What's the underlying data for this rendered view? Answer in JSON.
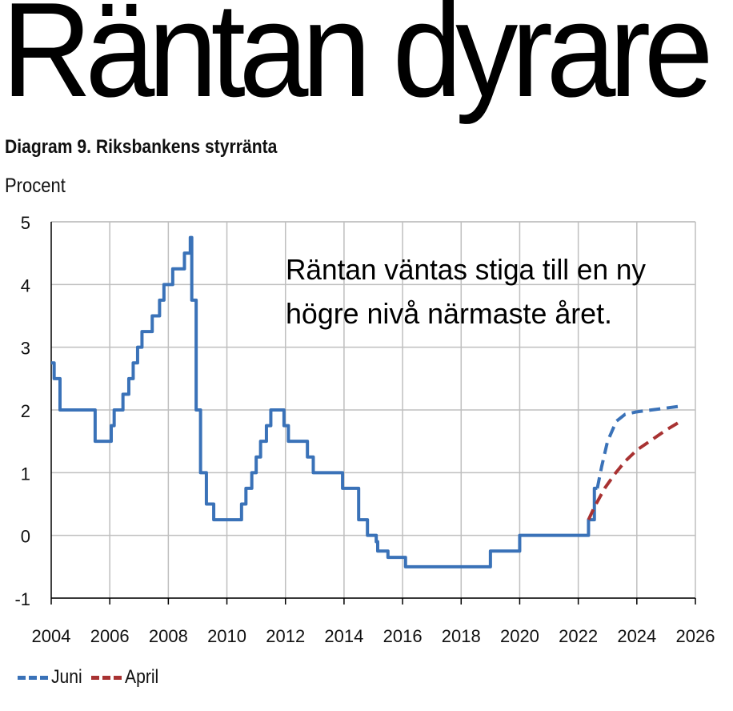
{
  "headline": "Räntan dyrare",
  "diagram_title": "Diagram 9. Riksbankens styrränta",
  "unit_label": "Procent",
  "colors": {
    "juni": "#3a72b8",
    "april": "#a83232",
    "grid": "#bfbfbf",
    "axis": "#000000"
  },
  "chart_data": {
    "type": "line",
    "title": "Diagram 9. Riksbankens styrränta",
    "ylabel": "Procent",
    "xlim": [
      2004,
      2026
    ],
    "ylim": [
      -1,
      5
    ],
    "x_ticks": [
      "2004",
      "2006",
      "2008",
      "2010",
      "2012",
      "2014",
      "2016",
      "2018",
      "2020",
      "2022",
      "2024",
      "2026"
    ],
    "y_ticks": [
      "5",
      "4",
      "3",
      "2",
      "1",
      "0",
      "-1"
    ],
    "grid": true,
    "annotation": [
      "Räntan väntas stiga till en ny",
      "högre nivå närmaste året."
    ],
    "legend_position": "bottom-left",
    "series": [
      {
        "name": "Juni",
        "style": "solid",
        "points": [
          [
            2004.0,
            2.75
          ],
          [
            2004.1,
            2.75
          ],
          [
            2004.1,
            2.5
          ],
          [
            2004.3,
            2.5
          ],
          [
            2004.3,
            2.0
          ],
          [
            2005.5,
            2.0
          ],
          [
            2005.5,
            1.5
          ],
          [
            2006.05,
            1.5
          ],
          [
            2006.05,
            1.75
          ],
          [
            2006.15,
            1.75
          ],
          [
            2006.15,
            2.0
          ],
          [
            2006.45,
            2.0
          ],
          [
            2006.45,
            2.25
          ],
          [
            2006.65,
            2.25
          ],
          [
            2006.65,
            2.5
          ],
          [
            2006.8,
            2.5
          ],
          [
            2006.8,
            2.75
          ],
          [
            2006.95,
            2.75
          ],
          [
            2006.95,
            3.0
          ],
          [
            2007.1,
            3.0
          ],
          [
            2007.1,
            3.25
          ],
          [
            2007.45,
            3.25
          ],
          [
            2007.45,
            3.5
          ],
          [
            2007.7,
            3.5
          ],
          [
            2007.7,
            3.75
          ],
          [
            2007.85,
            3.75
          ],
          [
            2007.85,
            4.0
          ],
          [
            2008.15,
            4.0
          ],
          [
            2008.15,
            4.25
          ],
          [
            2008.55,
            4.25
          ],
          [
            2008.55,
            4.5
          ],
          [
            2008.75,
            4.5
          ],
          [
            2008.75,
            4.75
          ],
          [
            2008.8,
            4.75
          ],
          [
            2008.8,
            3.75
          ],
          [
            2008.95,
            3.75
          ],
          [
            2008.95,
            2.0
          ],
          [
            2009.1,
            2.0
          ],
          [
            2009.1,
            1.0
          ],
          [
            2009.3,
            1.0
          ],
          [
            2009.3,
            0.5
          ],
          [
            2009.55,
            0.5
          ],
          [
            2009.55,
            0.25
          ],
          [
            2010.5,
            0.25
          ],
          [
            2010.5,
            0.5
          ],
          [
            2010.65,
            0.5
          ],
          [
            2010.65,
            0.75
          ],
          [
            2010.85,
            0.75
          ],
          [
            2010.85,
            1.0
          ],
          [
            2011.0,
            1.0
          ],
          [
            2011.0,
            1.25
          ],
          [
            2011.15,
            1.25
          ],
          [
            2011.15,
            1.5
          ],
          [
            2011.35,
            1.5
          ],
          [
            2011.35,
            1.75
          ],
          [
            2011.5,
            1.75
          ],
          [
            2011.5,
            2.0
          ],
          [
            2011.95,
            2.0
          ],
          [
            2011.95,
            1.75
          ],
          [
            2012.1,
            1.75
          ],
          [
            2012.1,
            1.5
          ],
          [
            2012.75,
            1.5
          ],
          [
            2012.75,
            1.25
          ],
          [
            2012.95,
            1.25
          ],
          [
            2012.95,
            1.0
          ],
          [
            2013.95,
            1.0
          ],
          [
            2013.95,
            0.75
          ],
          [
            2014.5,
            0.75
          ],
          [
            2014.5,
            0.25
          ],
          [
            2014.8,
            0.25
          ],
          [
            2014.8,
            0.0
          ],
          [
            2015.1,
            0.0
          ],
          [
            2015.1,
            -0.1
          ],
          [
            2015.15,
            -0.1
          ],
          [
            2015.15,
            -0.25
          ],
          [
            2015.5,
            -0.25
          ],
          [
            2015.5,
            -0.35
          ],
          [
            2016.1,
            -0.35
          ],
          [
            2016.1,
            -0.5
          ],
          [
            2019.0,
            -0.5
          ],
          [
            2019.0,
            -0.25
          ],
          [
            2020.0,
            -0.25
          ],
          [
            2020.0,
            0.0
          ],
          [
            2022.35,
            0.0
          ],
          [
            2022.35,
            0.25
          ],
          [
            2022.55,
            0.25
          ],
          [
            2022.55,
            0.75
          ],
          [
            2022.65,
            0.75
          ]
        ]
      },
      {
        "name": "Juni",
        "style": "dashed",
        "points": [
          [
            2022.65,
            0.75
          ],
          [
            2022.8,
            1.1
          ],
          [
            2023.0,
            1.5
          ],
          [
            2023.3,
            1.82
          ],
          [
            2023.6,
            1.93
          ],
          [
            2024.0,
            1.97
          ],
          [
            2024.5,
            2.0
          ],
          [
            2025.0,
            2.03
          ],
          [
            2025.5,
            2.06
          ]
        ]
      },
      {
        "name": "April",
        "style": "dashed",
        "points": [
          [
            2022.35,
            0.25
          ],
          [
            2022.55,
            0.45
          ],
          [
            2022.9,
            0.75
          ],
          [
            2023.25,
            0.98
          ],
          [
            2023.6,
            1.18
          ],
          [
            2024.0,
            1.36
          ],
          [
            2024.5,
            1.52
          ],
          [
            2025.0,
            1.68
          ],
          [
            2025.5,
            1.82
          ]
        ]
      }
    ],
    "legend": [
      {
        "name": "Juni",
        "color": "#3a72b8"
      },
      {
        "name": "April",
        "color": "#a83232"
      }
    ]
  }
}
